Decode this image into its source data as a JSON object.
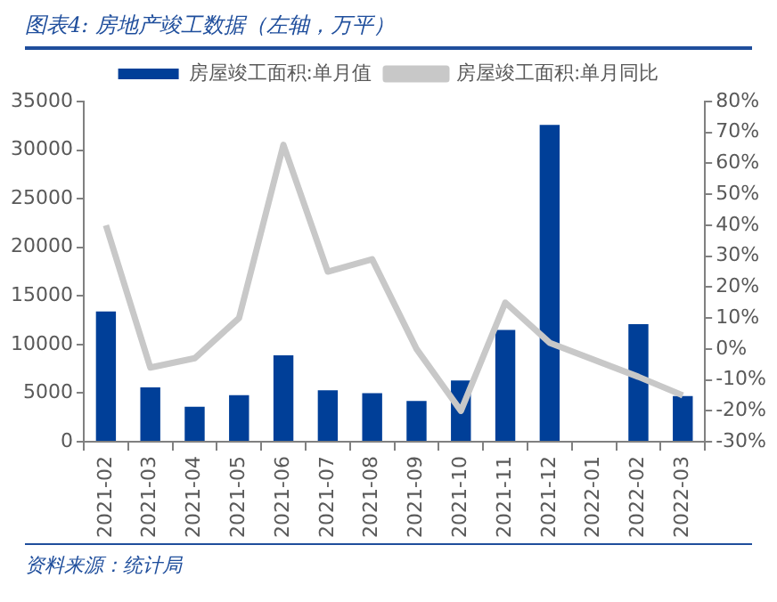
{
  "chart_data": {
    "type": "bar",
    "title": "图表4:  房地产竣工数据（左轴，万平）",
    "categories": [
      "2021-02",
      "2021-03",
      "2021-04",
      "2021-05",
      "2021-06",
      "2021-07",
      "2021-08",
      "2021-09",
      "2021-10",
      "2021-11",
      "2021-12",
      "2022-01",
      "2022-02",
      "2022-03"
    ],
    "series": [
      {
        "name": "房屋竣工面积:单月值",
        "color": "#003f98",
        "values": [
          13400,
          5600,
          3600,
          4800,
          8900,
          5300,
          5000,
          4200,
          6300,
          11500,
          32600,
          null,
          12100,
          4700
        ]
      },
      {
        "name": "房屋竣工面积:单月同比",
        "type": "line",
        "axis": "y2",
        "color": "#c8c8c8",
        "values": [
          40,
          -6,
          -3,
          10,
          66,
          25,
          29,
          0,
          -20,
          15,
          2,
          null,
          -9,
          -15
        ]
      }
    ],
    "ylim": [
      0,
      35000
    ],
    "yticks": [
      0,
      5000,
      10000,
      15000,
      20000,
      25000,
      30000,
      35000
    ],
    "y2lim": [
      -30,
      80
    ],
    "y2ticks": [
      {
        "value": -30,
        "label": "-30%"
      },
      {
        "value": -20,
        "label": "-20%"
      },
      {
        "value": -10,
        "label": "-10%"
      },
      {
        "value": 0,
        "label": "0%"
      },
      {
        "value": 10,
        "label": "10%"
      },
      {
        "value": 20,
        "label": "20%"
      },
      {
        "value": 30,
        "label": "30%"
      },
      {
        "value": 40,
        "label": "40%"
      },
      {
        "value": 50,
        "label": "50%"
      },
      {
        "value": 60,
        "label": "60%"
      },
      {
        "value": 70,
        "label": "70%"
      },
      {
        "value": 80,
        "label": "80%"
      }
    ],
    "grid": false,
    "legend": "top",
    "marker": "none",
    "annotations": [
      "资料来源：统计局"
    ]
  }
}
